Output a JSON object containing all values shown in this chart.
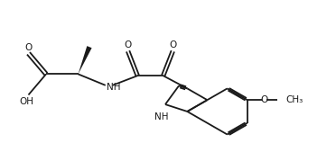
{
  "background_color": "#ffffff",
  "line_color": "#1a1a1a",
  "line_width": 1.3,
  "font_size": 7.5,
  "figsize": [
    3.72,
    1.79
  ],
  "dpi": 100,
  "xlim": [
    0,
    10
  ],
  "ylim": [
    0,
    5
  ]
}
